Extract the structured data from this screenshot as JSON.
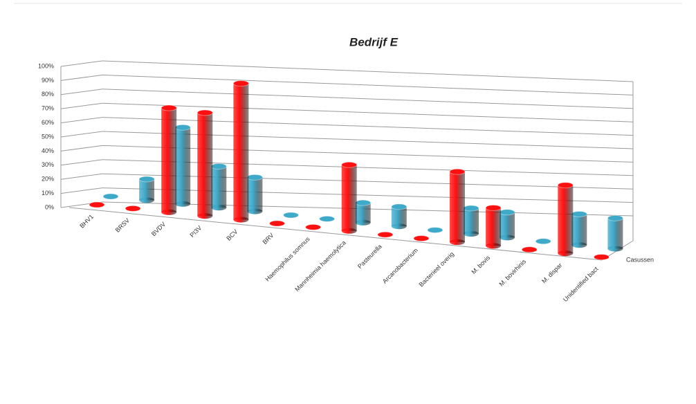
{
  "chart_data": {
    "type": "bar3d",
    "title": "Bedrijf E",
    "categories": [
      "BHV1",
      "BRSV",
      "BVDV",
      "PI3V",
      "BCV",
      "BRV",
      "Haemophilus somnus",
      "Mannheimia haemolytica",
      "Pasteurella",
      "Arcanobacterium",
      "Bacterieel overig",
      "M. bovis",
      "M. bovirhinis",
      "M. dispar",
      "Unidentified bact"
    ],
    "series": [
      {
        "color": "#3fa9c9",
        "values": [
          0,
          15,
          55,
          30,
          25,
          0,
          0,
          15,
          15,
          0,
          20,
          20,
          0,
          25,
          25
        ]
      },
      {
        "name": "Casussen",
        "color": "#ff1010",
        "values": [
          0,
          0,
          75,
          75,
          100,
          0,
          0,
          50,
          0,
          0,
          55,
          30,
          0,
          55,
          0
        ]
      }
    ],
    "ylim": [
      0,
      100
    ],
    "yticks": [
      {
        "value": 0,
        "label": "0%"
      },
      {
        "value": 10,
        "label": "10%"
      },
      {
        "value": 20,
        "label": "20%"
      },
      {
        "value": 30,
        "label": "30%"
      },
      {
        "value": 40,
        "label": "40%"
      },
      {
        "value": 50,
        "label": "50%"
      },
      {
        "value": 60,
        "label": "60%"
      },
      {
        "value": 70,
        "label": "70%"
      },
      {
        "value": 80,
        "label": "80%"
      },
      {
        "value": 90,
        "label": "90%"
      },
      {
        "value": 100,
        "label": "100%"
      }
    ],
    "grid": true
  }
}
